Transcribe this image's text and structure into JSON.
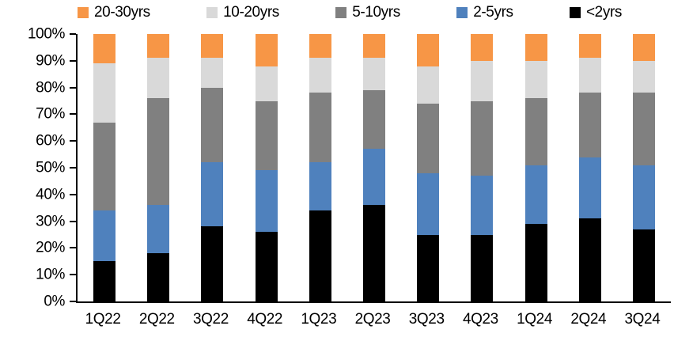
{
  "chart_data": {
    "type": "bar",
    "stacked": true,
    "percent_stacked": true,
    "title": "",
    "xlabel": "",
    "ylabel": "",
    "grid": false,
    "categories": [
      "1Q22",
      "2Q22",
      "3Q22",
      "4Q22",
      "1Q23",
      "2Q23",
      "3Q23",
      "4Q23",
      "1Q24",
      "2Q24",
      "3Q24"
    ],
    "series": [
      {
        "name": "<2yrs",
        "color": "#000000",
        "values": [
          15,
          18,
          28,
          26,
          34,
          36,
          25,
          25,
          29,
          31,
          27
        ]
      },
      {
        "name": "2-5yrs",
        "color": "#4F81BD",
        "values": [
          19,
          18,
          24,
          23,
          18,
          21,
          23,
          22,
          22,
          23,
          24
        ]
      },
      {
        "name": "5-10yrs",
        "color": "#808080",
        "values": [
          33,
          40,
          28,
          26,
          26,
          22,
          26,
          28,
          25,
          24,
          27
        ]
      },
      {
        "name": "10-20yrs",
        "color": "#D9D9D9",
        "values": [
          22,
          15,
          11,
          13,
          13,
          12,
          14,
          15,
          14,
          13,
          12
        ]
      },
      {
        "name": "20-30yrs",
        "color": "#F79646",
        "values": [
          11,
          9,
          9,
          12,
          9,
          9,
          12,
          10,
          10,
          9,
          10
        ]
      }
    ],
    "y_axis": {
      "min": 0,
      "max": 100,
      "tick_labels": [
        "0%",
        "10%",
        "20%",
        "30%",
        "40%",
        "50%",
        "60%",
        "70%",
        "80%",
        "90%",
        "100%"
      ]
    },
    "legend": {
      "position": "top",
      "order": [
        "20-30yrs",
        "10-20yrs",
        "5-10yrs",
        "2-5yrs",
        "<2yrs"
      ]
    },
    "colors": {
      "axis": "#000000",
      "text": "#000000",
      "background": "#FFFFFF"
    }
  }
}
